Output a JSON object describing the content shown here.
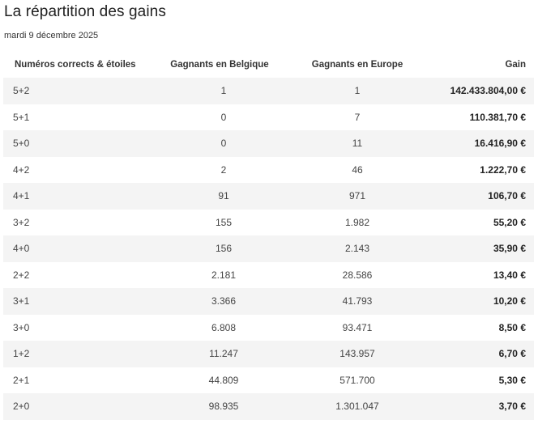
{
  "title": "La répartition des gains",
  "date": "mardi 9 décembre 2025",
  "columns": {
    "combo": "Numéros corrects & étoiles",
    "belgium": "Gagnants en Belgique",
    "europe": "Gagnants en Europe",
    "gain": "Gain"
  },
  "rows": [
    {
      "combo": "5+2",
      "belgium": "1",
      "europe": "1",
      "gain": "142.433.804,00 €"
    },
    {
      "combo": "5+1",
      "belgium": "0",
      "europe": "7",
      "gain": "110.381,70 €"
    },
    {
      "combo": "5+0",
      "belgium": "0",
      "europe": "11",
      "gain": "16.416,90 €"
    },
    {
      "combo": "4+2",
      "belgium": "2",
      "europe": "46",
      "gain": "1.222,70 €"
    },
    {
      "combo": "4+1",
      "belgium": "91",
      "europe": "971",
      "gain": "106,70 €"
    },
    {
      "combo": "3+2",
      "belgium": "155",
      "europe": "1.982",
      "gain": "55,20 €"
    },
    {
      "combo": "4+0",
      "belgium": "156",
      "europe": "2.143",
      "gain": "35,90 €"
    },
    {
      "combo": "2+2",
      "belgium": "2.181",
      "europe": "28.586",
      "gain": "13,40 €"
    },
    {
      "combo": "3+1",
      "belgium": "3.366",
      "europe": "41.793",
      "gain": "10,20 €"
    },
    {
      "combo": "3+0",
      "belgium": "6.808",
      "europe": "93.471",
      "gain": "8,50 €"
    },
    {
      "combo": "1+2",
      "belgium": "11.247",
      "europe": "143.957",
      "gain": "6,70 €"
    },
    {
      "combo": "2+1",
      "belgium": "44.809",
      "europe": "571.700",
      "gain": "5,30 €"
    },
    {
      "combo": "2+0",
      "belgium": "98.935",
      "europe": "1.301.047",
      "gain": "3,70 €"
    }
  ]
}
